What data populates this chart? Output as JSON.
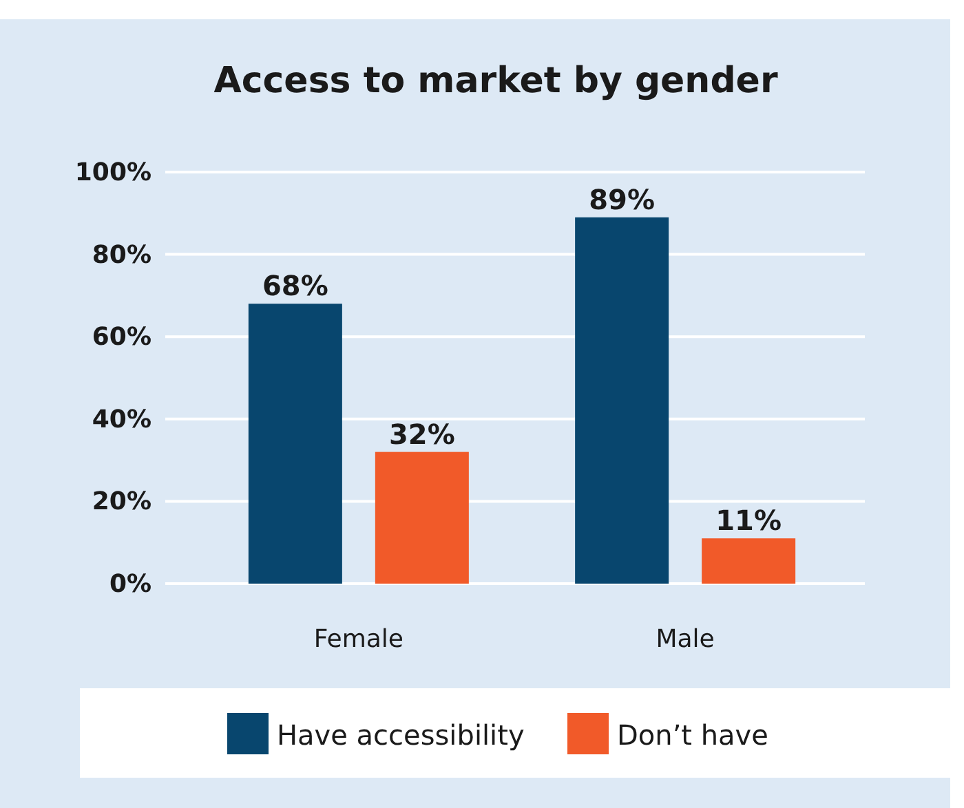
{
  "chart_data": {
    "type": "bar",
    "title": "Access to market by gender",
    "categories": [
      "Female",
      "Male"
    ],
    "series": [
      {
        "name": "Have accessibility",
        "color": "#08466e",
        "values": [
          68,
          89
        ]
      },
      {
        "name": "Don’t have",
        "color": "#f15a29",
        "values": [
          32,
          11
        ]
      }
    ],
    "ylim": [
      0,
      100
    ],
    "yticks": [
      {
        "value": 0,
        "label": "0%"
      },
      {
        "value": 20,
        "label": "20%"
      },
      {
        "value": 40,
        "label": "40%"
      },
      {
        "value": 60,
        "label": "60%"
      },
      {
        "value": 80,
        "label": "80%"
      },
      {
        "value": 100,
        "label": "100%"
      }
    ],
    "value_labels": [
      [
        "68%",
        "89%"
      ],
      [
        "32%",
        "11%"
      ]
    ],
    "grid": "y",
    "legend": "bottom"
  }
}
